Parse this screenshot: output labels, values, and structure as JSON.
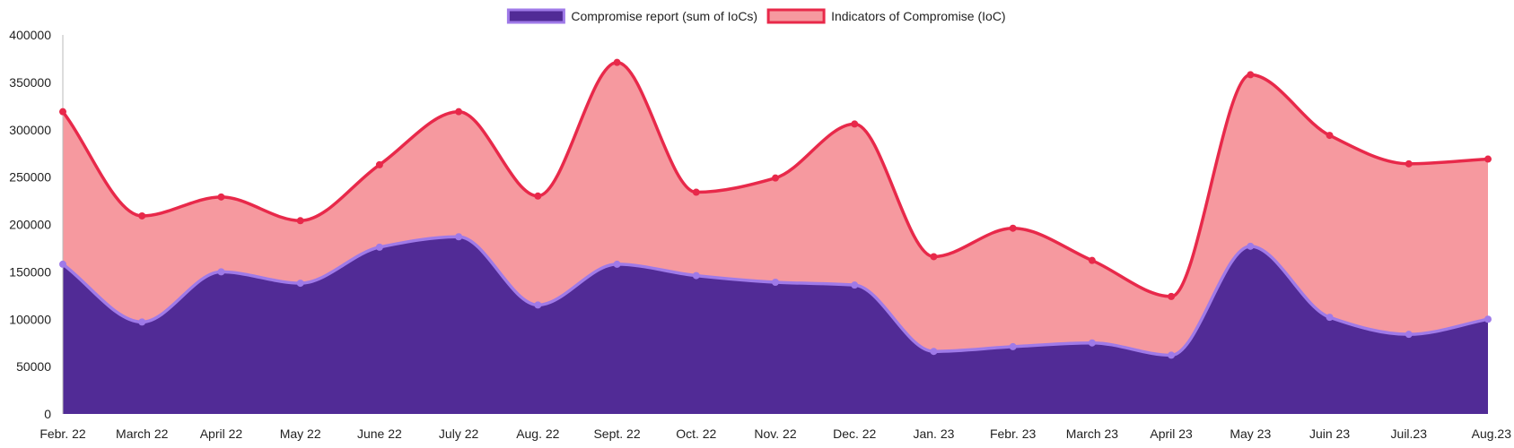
{
  "chart_data": {
    "type": "area",
    "stacked": false,
    "smooth": true,
    "grid": false,
    "legend_position": "top-center",
    "categories": [
      "Febr. 22",
      "March 22",
      "April 22",
      "May 22",
      "June 22",
      "July 22",
      "Aug. 22",
      "Sept. 22",
      "Oct. 22",
      "Nov. 22",
      "Dec. 22",
      "Jan. 23",
      "Febr. 23",
      "March 23",
      "April 23",
      "May 23",
      "Juin 23",
      "Juil.23",
      "Aug.23"
    ],
    "ylim": [
      0,
      400000
    ],
    "yticks": [
      0,
      50000,
      100000,
      150000,
      200000,
      250000,
      300000,
      350000,
      400000
    ],
    "ytick_labels": [
      "0",
      "50000",
      "100000",
      "150000",
      "200000",
      "250000",
      "300000",
      "350000",
      "400000"
    ],
    "series": [
      {
        "name": "Compromise report (sum of IoCs)",
        "line_color": "#9f7ae8",
        "fill_color": "#512b96",
        "values": [
          158000,
          97000,
          150000,
          138000,
          176000,
          187000,
          115000,
          158000,
          146000,
          139000,
          136000,
          66000,
          71000,
          75000,
          62000,
          177000,
          102000,
          84000,
          100000
        ]
      },
      {
        "name": "Indicators of Compromise (IoC)",
        "line_color": "#e8294a",
        "fill_color": "#f6999f",
        "values": [
          319000,
          209000,
          229000,
          204000,
          263000,
          319000,
          230000,
          371000,
          234000,
          249000,
          306000,
          166000,
          196000,
          162000,
          124000,
          358000,
          294000,
          264000,
          269000
        ]
      }
    ]
  }
}
